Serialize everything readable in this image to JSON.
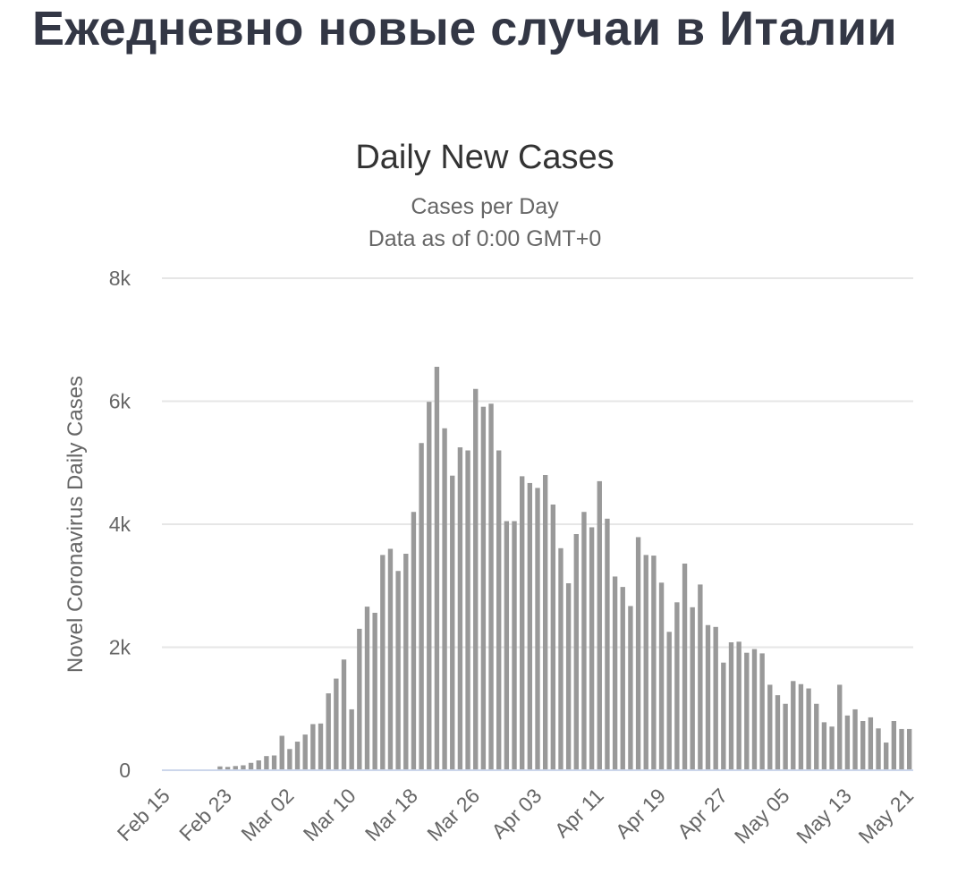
{
  "page": {
    "heading": "Ежедневно новые случаи в Италии"
  },
  "chart_data": {
    "type": "bar",
    "title": "Daily New Cases",
    "subtitle": [
      "Cases per Day",
      "Data as of 0:00 GMT+0"
    ],
    "xlabel": "",
    "ylabel": "Novel Coronavirus Daily Cases",
    "ylim": [
      0,
      8000
    ],
    "yticks": [
      0,
      2000,
      4000,
      6000,
      8000
    ],
    "ytick_labels": [
      "0",
      "2k",
      "4k",
      "6k",
      "8k"
    ],
    "xticks": [
      "Feb 15",
      "Feb 23",
      "Mar 02",
      "Mar 10",
      "Mar 18",
      "Mar 26",
      "Apr 03",
      "Apr 11",
      "Apr 19",
      "Apr 27",
      "May 05",
      "May 13",
      "May 21"
    ],
    "first_date": "Feb 15",
    "last_date": "May 21",
    "grid": true,
    "legend": "none",
    "bar_color": "#999999",
    "values": [
      0,
      0,
      0,
      0,
      0,
      0,
      0,
      62,
      54,
      68,
      80,
      120,
      160,
      230,
      240,
      560,
      345,
      465,
      580,
      750,
      760,
      1250,
      1490,
      1800,
      990,
      2300,
      2660,
      2560,
      3500,
      3600,
      3240,
      3520,
      4200,
      5320,
      5990,
      6560,
      5560,
      4790,
      5250,
      5200,
      6200,
      5910,
      5960,
      5200,
      4050,
      4050,
      4780,
      4670,
      4590,
      4800,
      4320,
      3610,
      3040,
      3840,
      4200,
      3950,
      4700,
      4090,
      3150,
      2980,
      2670,
      3790,
      3500,
      3490,
      3050,
      2250,
      2730,
      3360,
      2650,
      3020,
      2360,
      2330,
      1750,
      2080,
      2090,
      1910,
      1970,
      1900,
      1390,
      1220,
      1080,
      1450,
      1400,
      1330,
      1080,
      780,
      710,
      1390,
      890,
      990,
      800,
      860,
      680,
      450,
      800,
      670,
      670
    ],
    "colors": {
      "heading": "#333745",
      "title": "#333333",
      "text": "#666666",
      "grid": "#e6e6e6",
      "baseline": "#ccd6eb"
    }
  }
}
